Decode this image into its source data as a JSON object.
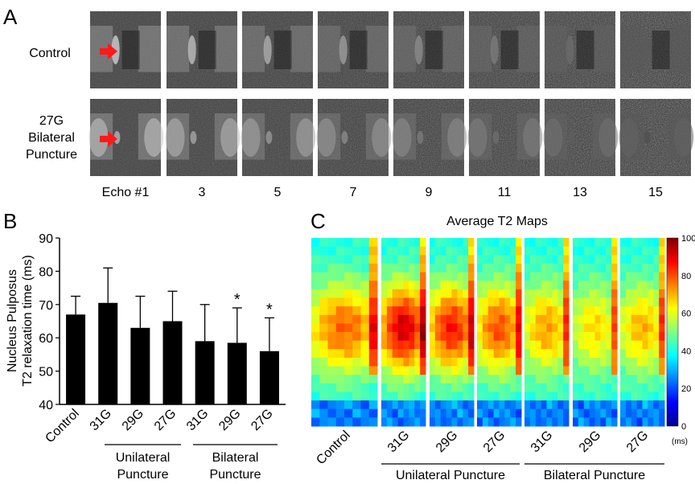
{
  "panel_a": {
    "letter": "A",
    "row_labels": [
      [
        "Control"
      ],
      [
        "27G",
        "Bilateral",
        "Puncture"
      ]
    ],
    "echo_labels": [
      "Echo #1",
      "3",
      "5",
      "7",
      "9",
      "11",
      "13",
      "15"
    ]
  },
  "panel_b": {
    "letter": "B",
    "ylabel": [
      "Nucleus Pulposus",
      "T2 relaxation time (ms)"
    ],
    "group_labels": [
      [
        "Unilateral",
        "Puncture"
      ],
      [
        "Bilateral",
        "Puncture"
      ]
    ]
  },
  "panel_c": {
    "letter": "C",
    "title": "Average T2 Maps",
    "colorbar_ticks": [
      "0",
      "20",
      "40",
      "60",
      "80",
      "100"
    ],
    "colorbar_unit": "(ms)",
    "map_labels": [
      "Control",
      "31G",
      "29G",
      "27G",
      "31G",
      "29G",
      "27G"
    ],
    "group_labels": [
      "Unilateral Puncture",
      "Bilateral Puncture"
    ]
  },
  "chart_data": {
    "type": "bar",
    "categories": [
      "Control",
      "31G",
      "29G",
      "27G",
      "31G",
      "29G",
      "27G"
    ],
    "values": [
      67,
      70.5,
      63,
      65,
      59,
      58.5,
      56
    ],
    "errors": [
      5.5,
      10.5,
      9.5,
      9,
      11,
      10.5,
      10
    ],
    "significance": [
      "",
      "",
      "",
      "",
      "",
      "*",
      "*"
    ],
    "ylim": [
      40,
      90
    ],
    "yticks": [
      40,
      50,
      60,
      70,
      80,
      90
    ],
    "bar_color": "#000000",
    "colormap": "jet"
  }
}
